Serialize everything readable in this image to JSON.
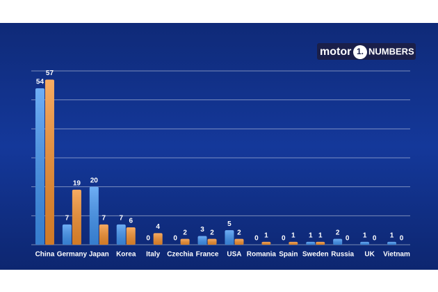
{
  "chart_data": {
    "type": "bar",
    "logo": [
      "motor",
      "1.",
      "NUMBERS"
    ],
    "categories": [
      "China",
      "Germany",
      "Japan",
      "Korea",
      "Italy",
      "Czechia",
      "France",
      "USA",
      "Romania",
      "Spain",
      "Sweden",
      "Russia",
      "UK",
      "Vietnam"
    ],
    "series": [
      {
        "color": "#3f93f2",
        "values": [
          54,
          7,
          20,
          7,
          0,
          0,
          3,
          5,
          0,
          0,
          1,
          2,
          1,
          1
        ]
      },
      {
        "color": "#f5902e",
        "values": [
          57,
          19,
          7,
          6,
          4,
          2,
          2,
          2,
          1,
          1,
          1,
          0,
          0,
          0
        ]
      }
    ],
    "ylim": [
      0,
      60
    ],
    "yticks": [
      0,
      10,
      20,
      30,
      40,
      50,
      60
    ],
    "ytick_labels": false,
    "grid": true
  }
}
